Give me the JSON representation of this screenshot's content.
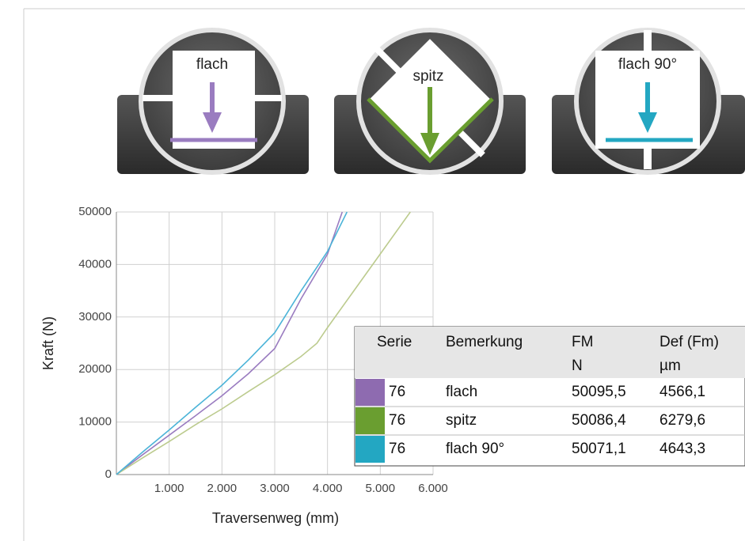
{
  "fixtures": [
    "flach",
    "spitz",
    "flach 90°"
  ],
  "chart_data": {
    "type": "line",
    "ylabel": "Kraft (N)",
    "xlabel": "Traversenweg (mm)",
    "xlim": [
      0,
      6
    ],
    "ylim": [
      0,
      50000
    ],
    "xticks": [
      {
        "value": 1,
        "label": "1.000"
      },
      {
        "value": 2,
        "label": "2.000"
      },
      {
        "value": 3,
        "label": "3.000"
      },
      {
        "value": 4,
        "label": "4.000"
      },
      {
        "value": 5,
        "label": "5.000"
      },
      {
        "value": 6,
        "label": "6.000"
      }
    ],
    "yticks": [
      0,
      10000,
      20000,
      30000,
      40000,
      50000
    ],
    "grid": true,
    "series": [
      {
        "name": "flach",
        "color": "#9a7cc0",
        "x": [
          0,
          0.5,
          1,
          1.5,
          2,
          2.5,
          3,
          3.5,
          4,
          4.28
        ],
        "values": [
          0,
          3800,
          7500,
          11200,
          15000,
          19200,
          24000,
          33500,
          42000,
          50000
        ]
      },
      {
        "name": "spitz",
        "color": "#bccb8e",
        "x": [
          0,
          0.5,
          1,
          1.5,
          2,
          2.5,
          3,
          3.5,
          3.8,
          4,
          4.5,
          5,
          5.57
        ],
        "values": [
          0,
          3200,
          6300,
          9500,
          12500,
          15800,
          19000,
          22500,
          25000,
          28000,
          35000,
          42000,
          50000
        ]
      },
      {
        "name": "flach 90°",
        "color": "#4cb4d8",
        "x": [
          0,
          0.5,
          1,
          1.5,
          2,
          2.5,
          3,
          3.5,
          4,
          4.37
        ],
        "values": [
          0,
          4300,
          8500,
          12800,
          17000,
          21800,
          27000,
          35000,
          42500,
          50000
        ]
      }
    ]
  },
  "table": {
    "header": [
      "Serie",
      "Bemerkung",
      "FM",
      "Def (Fm)"
    ],
    "units": [
      "N",
      "µm"
    ],
    "swatches": [
      "#8e6bb0",
      "#6a9e30",
      "#23a7c2"
    ],
    "rows": [
      [
        "76",
        "50095,5",
        "4566,1"
      ],
      [
        "76",
        "50086,4",
        "6279,6"
      ],
      [
        "76",
        "50071,1",
        "4643,3"
      ]
    ]
  }
}
